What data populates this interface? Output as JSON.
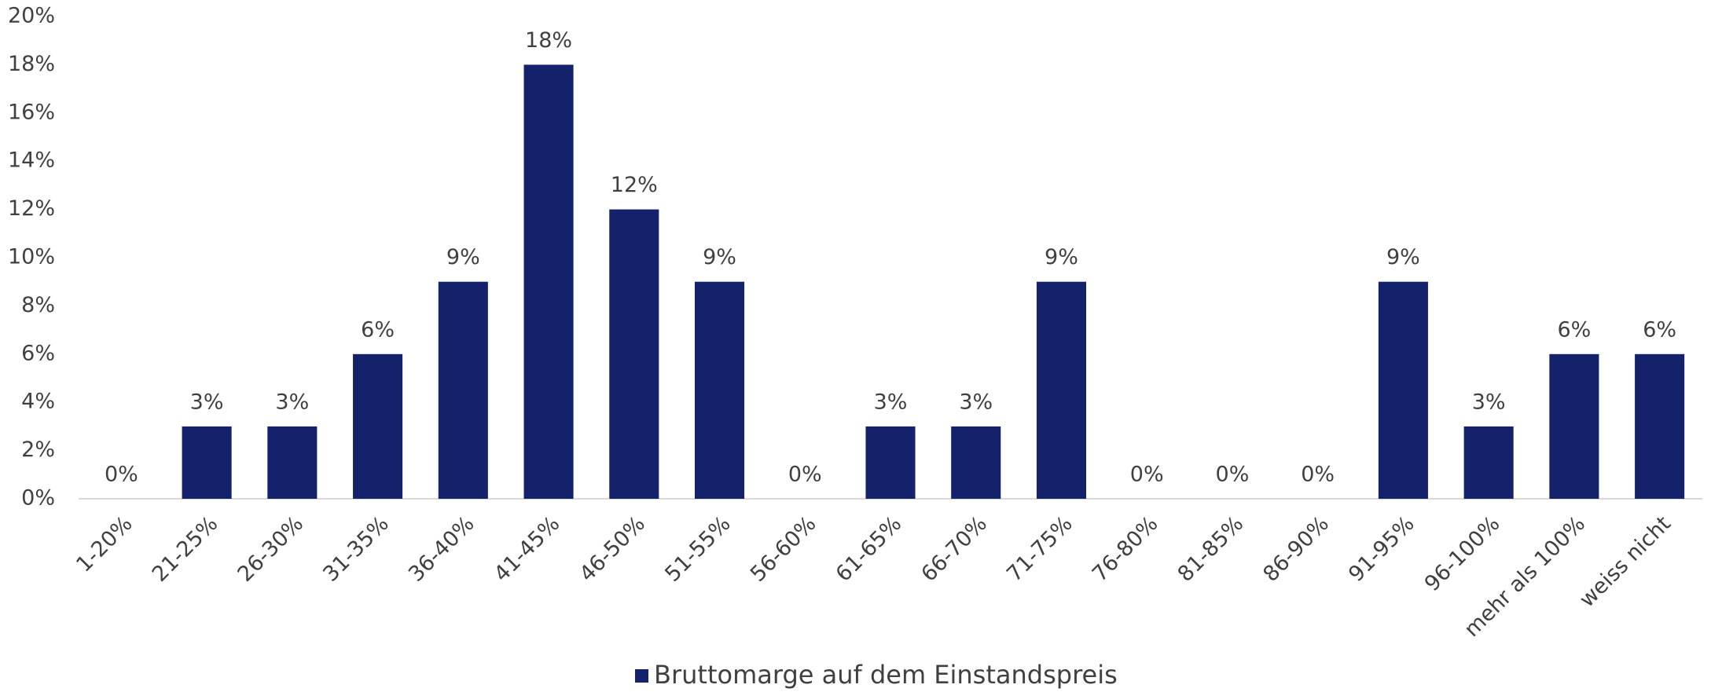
{
  "chart_data": {
    "type": "bar",
    "categories": [
      "1-20%",
      "21-25%",
      "26-30%",
      "31-35%",
      "36-40%",
      "41-45%",
      "46-50%",
      "51-55%",
      "56-60%",
      "61-65%",
      "66-70%",
      "71-75%",
      "76-80%",
      "81-85%",
      "86-90%",
      "91-95%",
      "96-100%",
      "mehr als 100%",
      "weiss nicht"
    ],
    "series": [
      {
        "name": "Bruttomarge auf dem Einstandspreis",
        "color": "#13226b",
        "values": [
          0,
          3,
          3,
          6,
          9,
          18,
          12,
          9,
          0,
          3,
          3,
          9,
          0,
          0,
          0,
          9,
          3,
          6,
          6
        ],
        "value_labels": [
          "0%",
          "3%",
          "3%",
          "6%",
          "9%",
          "18%",
          "12%",
          "9%",
          "0%",
          "3%",
          "3%",
          "9%",
          "0%",
          "0%",
          "0%",
          "9%",
          "3%",
          "6%",
          "6%"
        ]
      }
    ],
    "ylim": [
      0,
      20
    ],
    "yticks": [
      {
        "value": 0,
        "label": "0%"
      },
      {
        "value": 2,
        "label": "2%"
      },
      {
        "value": 4,
        "label": "4%"
      },
      {
        "value": 6,
        "label": "6%"
      },
      {
        "value": 8,
        "label": "8%"
      },
      {
        "value": 10,
        "label": "10%"
      },
      {
        "value": 12,
        "label": "12%"
      },
      {
        "value": 14,
        "label": "14%"
      },
      {
        "value": 16,
        "label": "16%"
      },
      {
        "value": 18,
        "label": "18%"
      },
      {
        "value": 20,
        "label": "20%"
      }
    ],
    "grid": false,
    "legend": "bottom"
  }
}
